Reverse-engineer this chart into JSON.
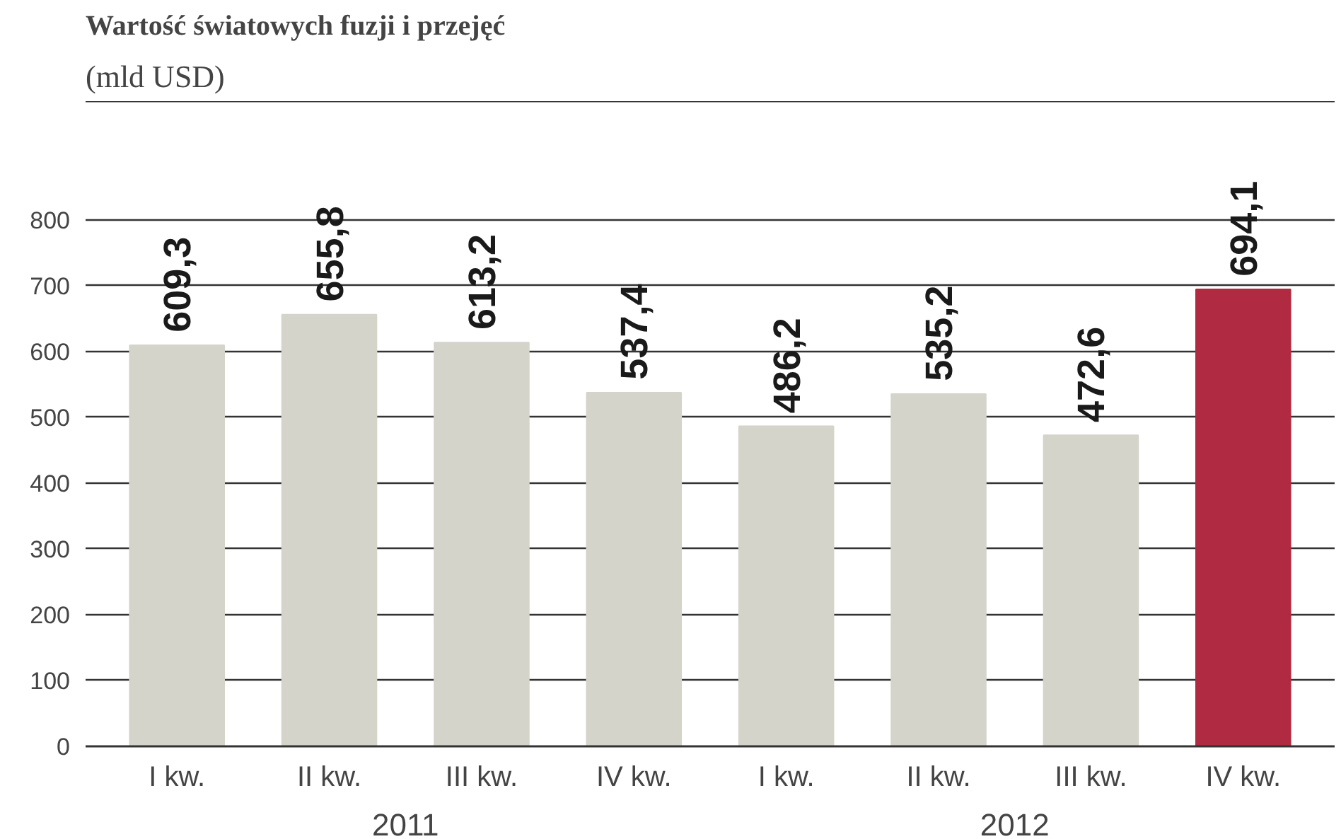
{
  "chart_data": {
    "type": "bar",
    "title": "Wartość światowych fuzji i przejęć",
    "subtitle": "(mld USD)",
    "categories": [
      "I kw.",
      "II kw.",
      "III kw.",
      "IV kw.",
      "I kw.",
      "II kw.",
      "III kw.",
      "IV kw."
    ],
    "values": [
      609.3,
      655.8,
      613.2,
      537.4,
      486.2,
      535.2,
      472.6,
      694.1
    ],
    "colors": [
      "#d4d4ca",
      "#d4d4ca",
      "#d4d4ca",
      "#d4d4ca",
      "#d4d4ca",
      "#d4d4ca",
      "#d4d4ca",
      "#b02a41"
    ],
    "value_labels": [
      "609,3",
      "655,8",
      "613,2",
      "537,4",
      "486,2",
      "535,2",
      "472,6",
      "694,1"
    ],
    "annotations": [
      "2011",
      "2012"
    ],
    "ylim": [
      0,
      980
    ],
    "yticks": [
      0,
      100,
      200,
      300,
      400,
      500,
      600,
      700,
      800
    ],
    "grid": "y"
  }
}
